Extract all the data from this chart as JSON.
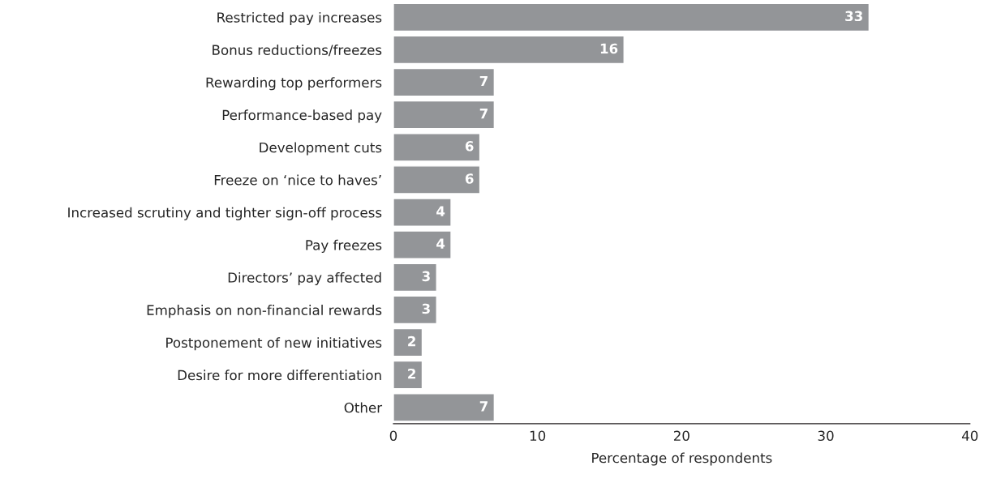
{
  "chart_data": {
    "type": "bar",
    "orientation": "horizontal",
    "xlabel": "Percentage of respondents",
    "categories": [
      "Restricted pay increases",
      "Bonus reductions/freezes",
      "Rewarding top performers",
      "Performance-based pay",
      "Development cuts",
      "Freeze on ‘nice to haves’",
      "Increased scrutiny and tighter sign-off process",
      "Pay freezes",
      "Directors’ pay affected",
      "Emphasis on non-financial rewards",
      "Postponement of new initiatives",
      "Desire for more differentiation",
      "Other"
    ],
    "values": [
      33,
      16,
      7,
      7,
      6,
      6,
      4,
      4,
      3,
      3,
      2,
      2,
      7
    ],
    "color": "#939598",
    "xlim": [
      0,
      40
    ],
    "xticks": [
      0,
      10,
      20,
      30,
      40
    ],
    "grid": false,
    "legend": false,
    "data_labels": true
  }
}
